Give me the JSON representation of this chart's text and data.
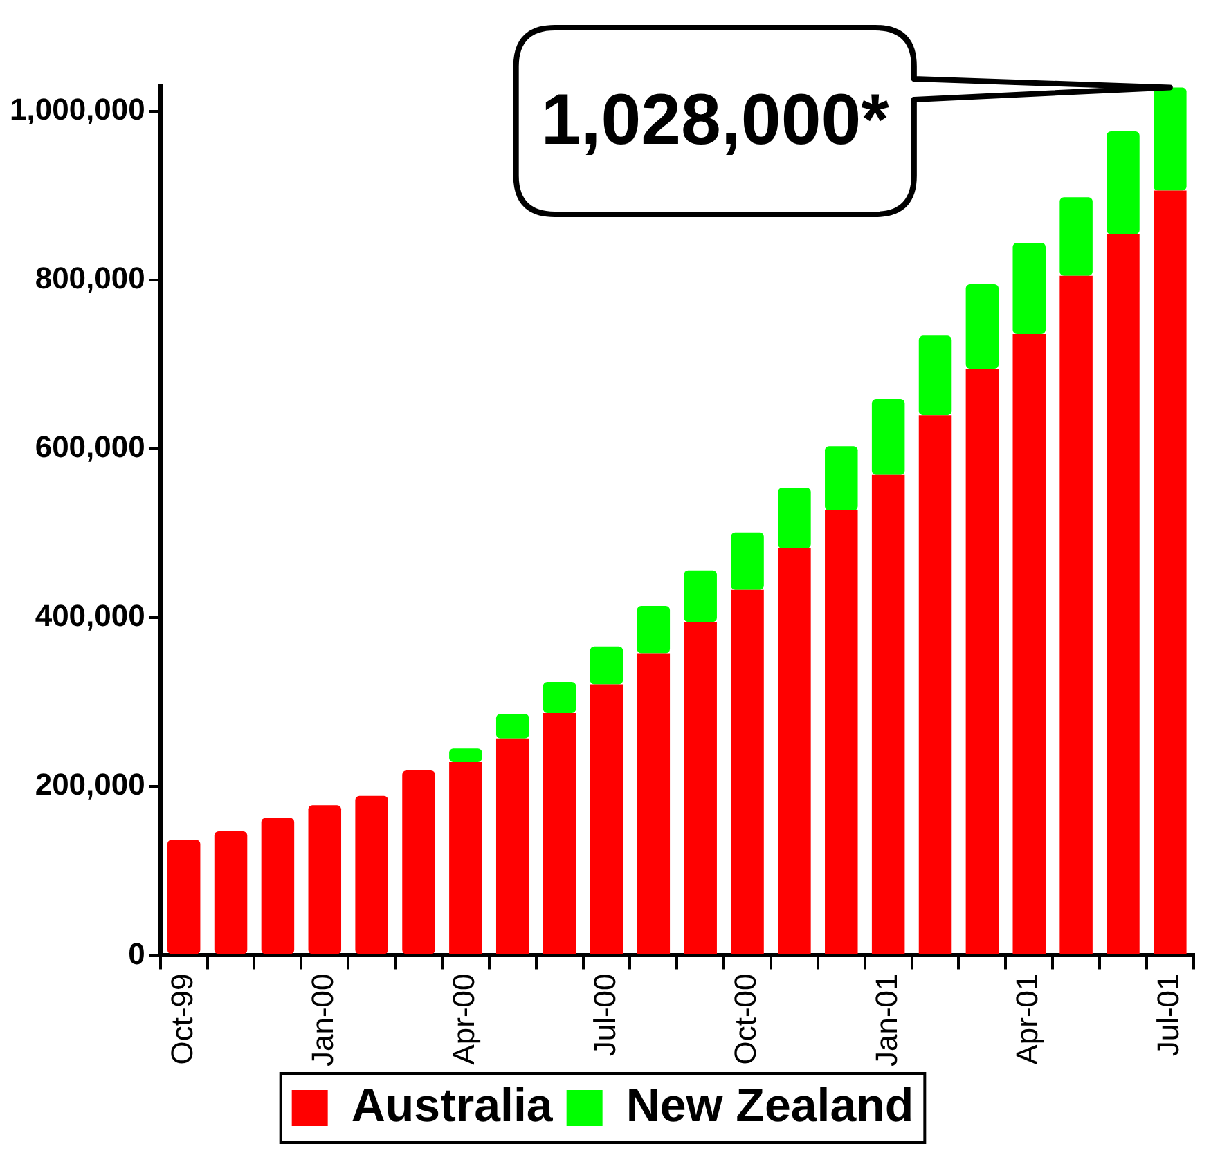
{
  "chart_data": {
    "type": "bar",
    "stacked": true,
    "categories": [
      "Oct-99",
      null,
      null,
      "Jan-00",
      null,
      null,
      "Apr-00",
      null,
      null,
      "Jul-00",
      null,
      null,
      "Oct-00",
      null,
      null,
      "Jan-01",
      null,
      null,
      "Apr-01",
      null,
      null,
      "Jul-01"
    ],
    "series": [
      {
        "name": "Australia",
        "color": "#ff0000",
        "values": [
          137000,
          147000,
          163000,
          178000,
          189000,
          219000,
          229000,
          257000,
          287000,
          321000,
          358000,
          395000,
          433000,
          482000,
          527000,
          569000,
          640000,
          695000,
          736000,
          805000,
          854000,
          906000
        ]
      },
      {
        "name": "New Zealand",
        "color": "#00ff00",
        "values": [
          null,
          null,
          null,
          null,
          null,
          null,
          16000,
          29000,
          37000,
          45000,
          56000,
          61000,
          68000,
          72000,
          76000,
          90000,
          94000,
          100000,
          108000,
          93000,
          122000,
          122000
        ]
      }
    ],
    "ylim": [
      0,
      1030000
    ],
    "yticks": [
      0,
      {
        "value": 200000,
        "label": "200,000"
      },
      {
        "value": 400000,
        "label": "400,000"
      },
      {
        "value": 600000,
        "label": "600,000"
      },
      {
        "value": 800000,
        "label": "800,000"
      },
      {
        "value": 1000000,
        "label": "1,000,000"
      }
    ],
    "grid": false,
    "legend": "bottom",
    "annotations": [
      "1,028,000*"
    ]
  }
}
